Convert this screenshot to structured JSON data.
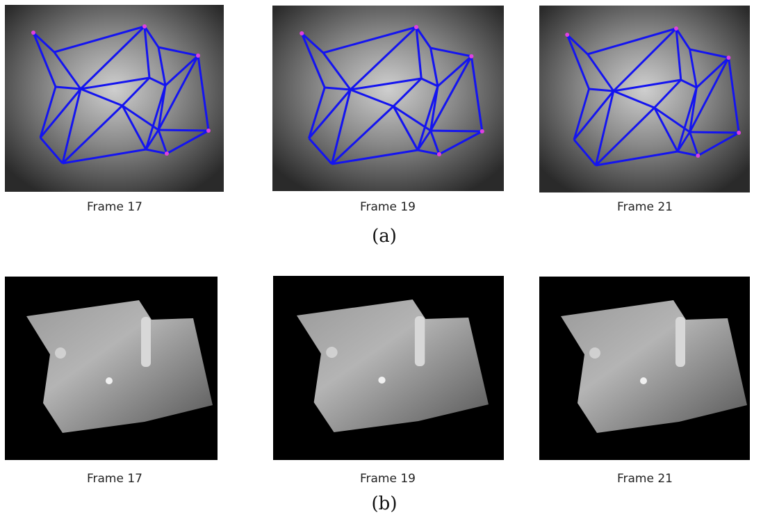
{
  "panel_a": {
    "captions": [
      "Frame 17",
      "Frame 19",
      "Frame 21"
    ],
    "label": "(a)"
  },
  "panel_b": {
    "captions": [
      "Frame 17",
      "Frame 19",
      "Frame 21"
    ],
    "label": "(b)"
  }
}
